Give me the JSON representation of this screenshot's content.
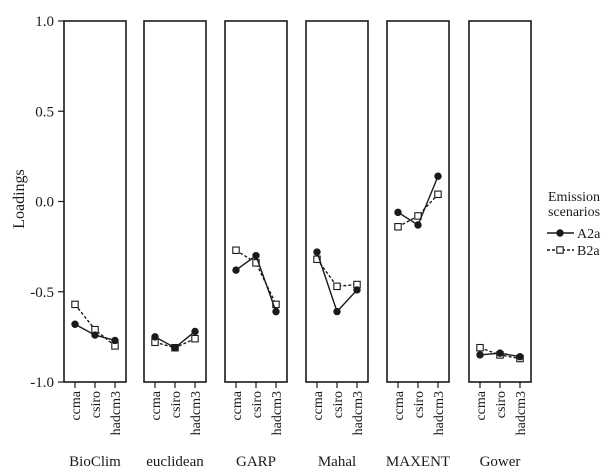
{
  "chart_data": {
    "type": "line",
    "ylabel": "Loadings",
    "ylim": [
      -1.0,
      1.0
    ],
    "yticks": [
      "1.0",
      "0.5",
      "0.0",
      "-0.5",
      "-1.0"
    ],
    "categories": [
      "ccma",
      "csiro",
      "hadcm3"
    ],
    "legend": {
      "title_lines": [
        "Emission",
        "scenarios"
      ],
      "placement": "right",
      "entries": [
        "A2a",
        "B2a"
      ]
    },
    "series_styles": [
      {
        "name": "A2a",
        "line": "solid",
        "marker": "filled-circle",
        "color": "#1a1a1a"
      },
      {
        "name": "B2a",
        "line": "dashed",
        "marker": "open-square",
        "color": "#1a1a1a"
      }
    ],
    "panels": [
      {
        "label": "BioClim",
        "series": [
          {
            "name": "A2a",
            "values": [
              -0.68,
              -0.74,
              -0.77
            ]
          },
          {
            "name": "B2a",
            "values": [
              -0.57,
              -0.71,
              -0.8
            ]
          }
        ]
      },
      {
        "label": "euclidean",
        "series": [
          {
            "name": "A2a",
            "values": [
              -0.75,
              -0.81,
              -0.72
            ]
          },
          {
            "name": "B2a",
            "values": [
              -0.78,
              -0.81,
              -0.76
            ]
          }
        ]
      },
      {
        "label": "GARP",
        "series": [
          {
            "name": "A2a",
            "values": [
              -0.38,
              -0.3,
              -0.61
            ]
          },
          {
            "name": "B2a",
            "values": [
              -0.27,
              -0.34,
              -0.57
            ]
          }
        ]
      },
      {
        "label": "Mahal",
        "series": [
          {
            "name": "A2a",
            "values": [
              -0.28,
              -0.61,
              -0.49
            ]
          },
          {
            "name": "B2a",
            "values": [
              -0.32,
              -0.47,
              -0.46
            ]
          }
        ]
      },
      {
        "label": "MAXENT",
        "series": [
          {
            "name": "A2a",
            "values": [
              -0.06,
              -0.13,
              0.14
            ]
          },
          {
            "name": "B2a",
            "values": [
              -0.14,
              -0.08,
              0.04
            ]
          }
        ]
      },
      {
        "label": "Gower",
        "series": [
          {
            "name": "A2a",
            "values": [
              -0.85,
              -0.84,
              -0.86
            ]
          },
          {
            "name": "B2a",
            "values": [
              -0.81,
              -0.85,
              -0.87
            ]
          }
        ]
      }
    ]
  }
}
